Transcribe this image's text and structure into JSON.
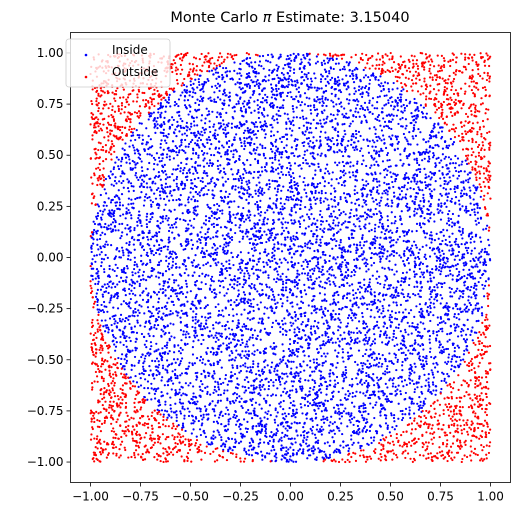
{
  "chart_data": {
    "type": "scatter",
    "title_prefix": "Monte Carlo ",
    "title_symbol": "π",
    "title_suffix": " Estimate: 3.15040",
    "estimate": 3.1504,
    "xlabel": "",
    "ylabel": "",
    "xlim": [
      -1.1,
      1.1
    ],
    "ylim": [
      -1.1,
      1.1
    ],
    "xticks": [
      -1.0,
      -0.75,
      -0.5,
      -0.25,
      0.0,
      0.25,
      0.5,
      0.75,
      1.0
    ],
    "yticks": [
      -1.0,
      -0.75,
      -0.5,
      -0.25,
      0.0,
      0.25,
      0.5,
      0.75,
      1.0
    ],
    "xtick_labels": [
      "−1.00",
      "−0.75",
      "−0.50",
      "−0.25",
      "0.00",
      "0.25",
      "0.50",
      "0.75",
      "1.00"
    ],
    "ytick_labels": [
      "−1.00",
      "−0.75",
      "−0.50",
      "−0.25",
      "0.00",
      "0.25",
      "0.50",
      "0.75",
      "1.00"
    ],
    "grid": false,
    "legend_position": "top-left",
    "sample_count": 10000,
    "sample_domain": {
      "x": [
        -1,
        1
      ],
      "y": [
        -1,
        1
      ]
    },
    "circle": {
      "center": [
        0,
        0
      ],
      "radius": 1
    },
    "series": [
      {
        "name": "Inside",
        "color": "#0000ff",
        "condition": "x^2 + y^2 <= 1"
      },
      {
        "name": "Outside",
        "color": "#ff0000",
        "condition": "x^2 + y^2 > 1"
      }
    ]
  }
}
